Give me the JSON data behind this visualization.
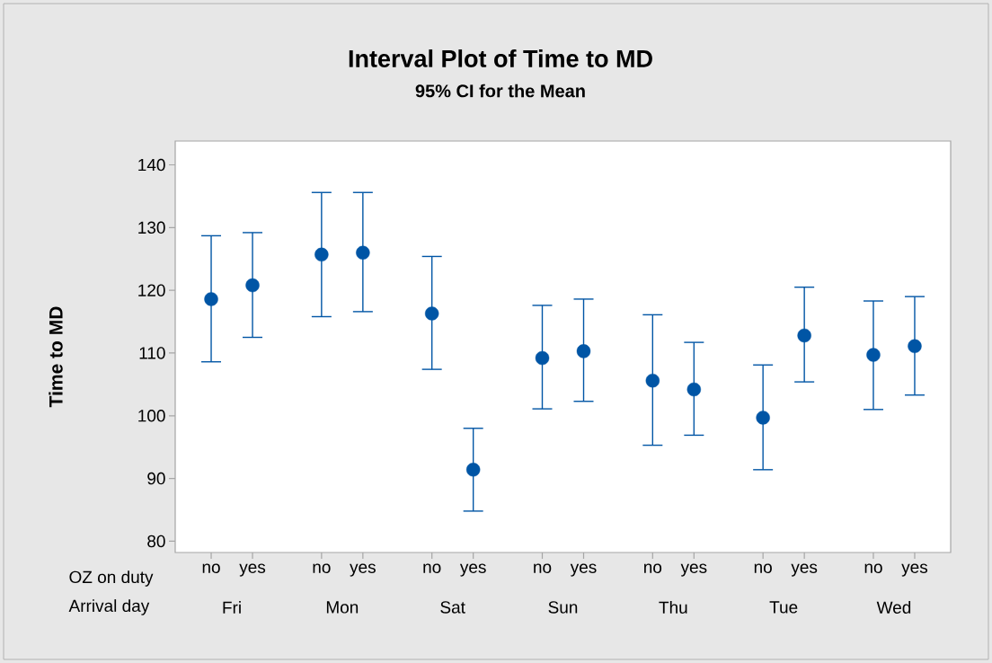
{
  "chart_data": {
    "type": "scatter",
    "title": "Interval Plot of Time to MD",
    "subtitle": "95% CI for the Mean",
    "ylabel": "Time to MD",
    "categories": [
      "no",
      "yes",
      "no",
      "yes",
      "no",
      "yes",
      "no",
      "yes",
      "no",
      "yes",
      "no",
      "yes",
      "no",
      "yes"
    ],
    "values": [
      118.6,
      120.8,
      125.7,
      126.0,
      116.3,
      91.4,
      109.2,
      110.3,
      105.6,
      104.2,
      99.7,
      112.8,
      109.7,
      111.1
    ],
    "errors": [
      [
        108.6,
        128.7
      ],
      [
        112.5,
        129.2
      ],
      [
        115.8,
        135.6
      ],
      [
        116.6,
        135.6
      ],
      [
        107.4,
        125.4
      ],
      [
        84.8,
        98.0
      ],
      [
        101.1,
        117.6
      ],
      [
        102.3,
        118.6
      ],
      [
        95.3,
        116.1
      ],
      [
        96.9,
        111.7
      ],
      [
        91.4,
        108.1
      ],
      [
        105.4,
        120.5
      ],
      [
        101.0,
        118.3
      ],
      [
        103.3,
        119.0
      ]
    ],
    "color": "#0055a5",
    "marker": "circle",
    "ylim": [
      78.2,
      143.8
    ],
    "yticks": [
      80,
      90,
      100,
      110,
      120,
      130,
      140
    ],
    "annotations": [
      "OZ on duty",
      "Arrival day",
      "Fri",
      "Mon",
      "Sat",
      "Sun",
      "Thu",
      "Tue",
      "Wed"
    ]
  }
}
